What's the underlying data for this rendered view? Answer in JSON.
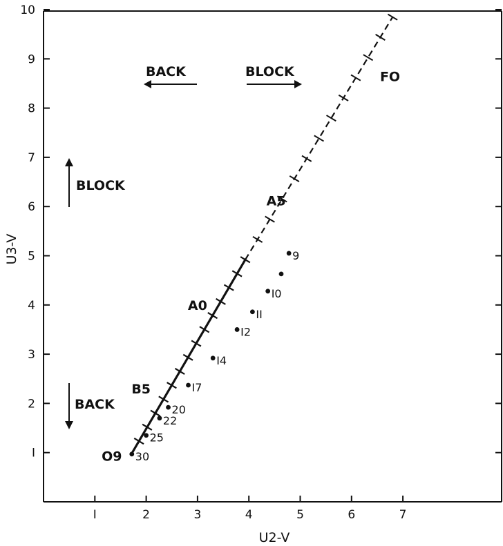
{
  "chart_data": {
    "type": "scatter",
    "title": "",
    "xlabel": "U2-V",
    "ylabel": "U3-V",
    "xlim": [
      0,
      9
    ],
    "ylim": [
      0,
      10
    ],
    "x_ticks": [
      1,
      2,
      3,
      4,
      5,
      6,
      7
    ],
    "x_tick_labels": [
      "I",
      "2",
      "3",
      "4",
      "5",
      "6",
      "7"
    ],
    "y_ticks": [
      1,
      2,
      3,
      4,
      5,
      6,
      7,
      8,
      9,
      10
    ],
    "y_tick_labels": [
      "I",
      "2",
      "3",
      "4",
      "5",
      "6",
      "7",
      "8",
      "9",
      "10"
    ],
    "grid": false,
    "track": {
      "start": [
        1.7,
        0.95
      ],
      "solid_end": [
        3.93,
        4.92
      ],
      "end": [
        6.8,
        9.85
      ],
      "solid_tick_count": 14,
      "dashed_tick_count": 12
    },
    "spectral_labels": [
      {
        "text": "O9",
        "x": 1.33,
        "y": 0.93
      },
      {
        "text": "B5",
        "x": 1.9,
        "y": 2.3
      },
      {
        "text": "A0",
        "x": 3.0,
        "y": 4.0
      },
      {
        "text": "A5",
        "x": 4.53,
        "y": 6.12
      },
      {
        "text": "FO",
        "x": 6.75,
        "y": 8.65
      }
    ],
    "points": [
      {
        "label": "9",
        "x": 4.78,
        "y": 5.05
      },
      {
        "label": "",
        "x": 4.63,
        "y": 4.63
      },
      {
        "label": "I0",
        "x": 4.37,
        "y": 4.28
      },
      {
        "label": "II",
        "x": 4.07,
        "y": 3.86
      },
      {
        "label": "I2",
        "x": 3.77,
        "y": 3.5
      },
      {
        "label": "I4",
        "x": 3.3,
        "y": 2.92
      },
      {
        "label": "I7",
        "x": 2.82,
        "y": 2.37
      },
      {
        "label": "20",
        "x": 2.43,
        "y": 1.92
      },
      {
        "label": "22",
        "x": 2.26,
        "y": 1.7
      },
      {
        "label": "25",
        "x": 2.0,
        "y": 1.35
      },
      {
        "label": "30",
        "x": 1.72,
        "y": 0.97
      }
    ],
    "annotations": {
      "back_horizontal": "BACK",
      "block_horizontal": "BLOCK",
      "block_vertical": "BLOCK",
      "back_vertical": "BACK"
    }
  }
}
